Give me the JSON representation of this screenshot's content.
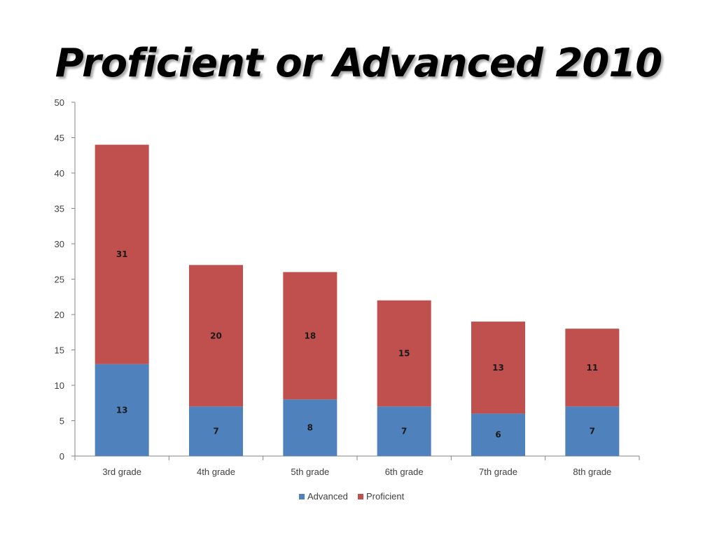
{
  "slide": {
    "title": "Proficient or Advanced 2010"
  },
  "chart_data": {
    "type": "bar",
    "stacked": true,
    "title": "Proficient or Advanced 2010",
    "categories": [
      "3rd grade",
      "4th grade",
      "5th grade",
      "6th grade",
      "7th grade",
      "8th grade"
    ],
    "series": [
      {
        "name": "Advanced",
        "color": "#4F81BD",
        "values": [
          13,
          7,
          8,
          7,
          6,
          7
        ]
      },
      {
        "name": "Proficient",
        "color": "#C0504D",
        "values": [
          31,
          20,
          18,
          15,
          13,
          11
        ]
      }
    ],
    "xlabel": "",
    "ylabel": "",
    "ylim": [
      0,
      50
    ],
    "yticks": [
      "0",
      "5",
      "10",
      "15",
      "20",
      "25",
      "30",
      "35",
      "40",
      "45",
      "50"
    ],
    "grid": false,
    "legend": "bottom",
    "data_labels": true
  }
}
